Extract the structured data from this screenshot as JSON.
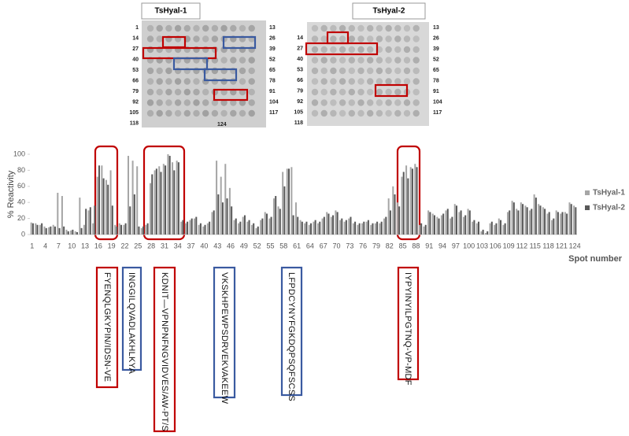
{
  "chart_data": {
    "type": "bar",
    "y_label": "% Reactivity",
    "x_label": "Spot number",
    "categories": [
      "1",
      null,
      null,
      "4",
      null,
      null,
      "7",
      null,
      null,
      "10",
      null,
      null,
      "13",
      null,
      null,
      "16",
      null,
      null,
      "19",
      null,
      null,
      "22",
      null,
      null,
      "25",
      null,
      null,
      "28",
      null,
      null,
      "31",
      null,
      null,
      "34",
      null,
      null,
      "37",
      null,
      null,
      "40",
      null,
      null,
      "43",
      null,
      null,
      "46",
      null,
      null,
      "49",
      null,
      null,
      "52",
      null,
      null,
      "55",
      null,
      null,
      "58",
      null,
      null,
      "61",
      null,
      null,
      "64",
      null,
      null,
      "67",
      null,
      null,
      "70",
      null,
      null,
      "73",
      null,
      null,
      "76",
      null,
      null,
      "79",
      null,
      null,
      "82",
      null,
      null,
      "85",
      null,
      null,
      "88",
      null,
      null,
      "91",
      null,
      null,
      "94",
      null,
      null,
      "97",
      null,
      null,
      "100",
      null,
      null,
      "103",
      null,
      null,
      "106",
      null,
      null,
      "109",
      null,
      null,
      "112",
      null,
      null,
      "115",
      null,
      null,
      "118",
      null,
      null,
      "121",
      null,
      null,
      "124"
    ],
    "series": [
      {
        "name": "TsHyal-1",
        "color": "#a6a6a6",
        "values": [
          15,
          14,
          12,
          10,
          9,
          12,
          52,
          48,
          6,
          5,
          4,
          46,
          12,
          30,
          14,
          72,
          86,
          68,
          80,
          12,
          14,
          12,
          98,
          92,
          85,
          8,
          12,
          64,
          80,
          85,
          88,
          100,
          90,
          92,
          16,
          14,
          18,
          20,
          12,
          10,
          14,
          28,
          92,
          72,
          88,
          58,
          18,
          14,
          22,
          16,
          12,
          8,
          18,
          28,
          20,
          45,
          35,
          78,
          82,
          84,
          40,
          18,
          14,
          12,
          16,
          14,
          20,
          28,
          22,
          30,
          18,
          16,
          20,
          14,
          12,
          14,
          16,
          12,
          14,
          14,
          20,
          45,
          60,
          40,
          72,
          86,
          84,
          88,
          12,
          10,
          30,
          26,
          22,
          24,
          30,
          20,
          38,
          28,
          22,
          32,
          16,
          14,
          4,
          2,
          14,
          12,
          20,
          12,
          28,
          42,
          32,
          40,
          36,
          30,
          50,
          38,
          34,
          26,
          18,
          30,
          26,
          28,
          40,
          36
        ]
      },
      {
        "name": "TsHyal-2",
        "color": "#595959",
        "values": [
          14,
          12,
          14,
          8,
          10,
          10,
          8,
          10,
          4,
          6,
          3,
          8,
          32,
          34,
          36,
          86,
          70,
          62,
          36,
          10,
          12,
          14,
          35,
          50,
          10,
          10,
          14,
          75,
          82,
          78,
          86,
          98,
          80,
          90,
          18,
          16,
          20,
          22,
          14,
          12,
          16,
          30,
          50,
          40,
          45,
          35,
          20,
          16,
          24,
          18,
          14,
          10,
          20,
          26,
          22,
          48,
          32,
          60,
          82,
          24,
          22,
          16,
          16,
          14,
          18,
          16,
          22,
          26,
          24,
          28,
          20,
          18,
          22,
          16,
          14,
          16,
          18,
          14,
          16,
          16,
          22,
          30,
          50,
          35,
          78,
          70,
          82,
          84,
          14,
          12,
          28,
          24,
          20,
          26,
          32,
          22,
          36,
          30,
          24,
          30,
          18,
          16,
          6,
          4,
          16,
          14,
          18,
          14,
          30,
          40,
          30,
          38,
          34,
          32,
          46,
          36,
          32,
          28,
          20,
          28,
          28,
          26,
          38,
          34
        ]
      }
    ],
    "ylim": [
      0,
      100
    ],
    "yticks": [
      0,
      20,
      40,
      60,
      80,
      100
    ],
    "grid": false,
    "legend": "right"
  },
  "blots": [
    {
      "title": "TsHyal-1",
      "left_labels": [
        "1",
        "14",
        "27",
        "40",
        "53",
        "66",
        "79",
        "92",
        "105",
        "118"
      ],
      "right_labels": [
        "13",
        "26",
        "39",
        "52",
        "65",
        "78",
        "91",
        "104",
        "117"
      ],
      "bottom_label": "124"
    },
    {
      "title": "TsHyal-2",
      "left_labels": [
        "14",
        "27",
        "40",
        "53",
        "66",
        "79",
        "92",
        "105",
        "118"
      ],
      "right_labels": [
        "13",
        "26",
        "39",
        "52",
        "65",
        "78",
        "91",
        "104",
        "117"
      ]
    }
  ],
  "peptides": [
    "FYENQLGKYPIN/IDSN-VE",
    "INGGILQVADLAKHLKYA",
    "KDNIT—VPNPNFNGVIDVES/AW-PT/S",
    "VKSKHPEWPSDRVEKVAKEEW",
    "LFPDCYNYFGKDQPSQFSCSS",
    "IYPYINYILPGTNQ-VP-MDF"
  ]
}
